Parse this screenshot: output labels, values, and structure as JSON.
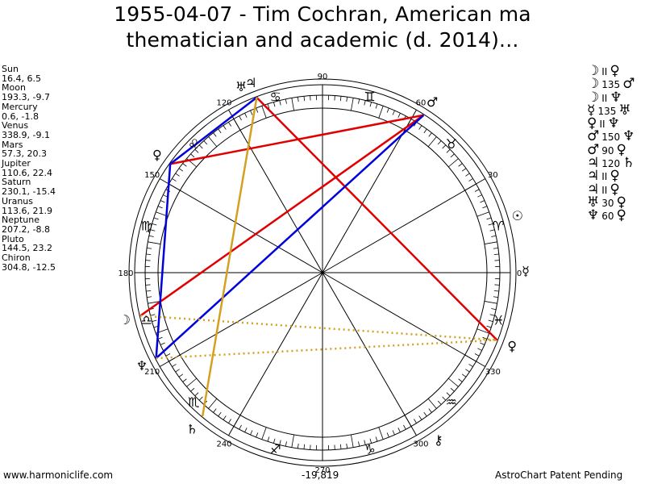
{
  "title": {
    "line1": "1955-04-07 - Tim Cochran, American ma",
    "line2": "thematician and academic (d. 2014)..."
  },
  "planets": [
    {
      "name": "Sun",
      "coords": "16.4, 6.5"
    },
    {
      "name": "Moon",
      "coords": "193.3, -9.7"
    },
    {
      "name": "Mercury",
      "coords": "0.6, -1.8"
    },
    {
      "name": "Venus",
      "coords": "338.9, -9.1"
    },
    {
      "name": "Mars",
      "coords": "57.3, 20.3"
    },
    {
      "name": "Jupiter",
      "coords": "110.6, 22.4"
    },
    {
      "name": "Saturn",
      "coords": "230.1, -15.4"
    },
    {
      "name": "Uranus",
      "coords": "113.6, 21.9"
    },
    {
      "name": "Neptune",
      "coords": "207.2, -8.8"
    },
    {
      "name": "Pluto",
      "coords": "144.5, 23.2"
    },
    {
      "name": "Chiron",
      "coords": "304.8, -12.5"
    }
  ],
  "aspects": [
    {
      "p1": "☽",
      "asp": "II",
      "p2": "♀"
    },
    {
      "p1": "☽",
      "asp": "135",
      "p2": "♂"
    },
    {
      "p1": "☽",
      "asp": "II",
      "p2": "♆"
    },
    {
      "p1": "☿",
      "asp": "135",
      "p2": "♅"
    },
    {
      "p1": "♀",
      "asp": "II",
      "p2": "♆"
    },
    {
      "p1": "♂",
      "asp": "150",
      "p2": "♆"
    },
    {
      "p1": "♂",
      "asp": "90",
      "p2": "♀"
    },
    {
      "p1": "♃",
      "asp": "120",
      "p2": "♄"
    },
    {
      "p1": "♃",
      "asp": "II",
      "p2": "♀"
    },
    {
      "p1": "♃",
      "asp": "II",
      "p2": "♀"
    },
    {
      "p1": "♅",
      "asp": "30",
      "p2": "♀"
    },
    {
      "p1": "♆",
      "asp": "60",
      "p2": "♀"
    }
  ],
  "degree_labels": [
    "0",
    "30",
    "60",
    "90",
    "120",
    "150",
    "180",
    "210",
    "240",
    "270",
    "300",
    "330"
  ],
  "zodiac_glyphs": [
    "♈",
    "♉",
    "♊",
    "♋",
    "♌",
    "♍",
    "♎",
    "♏",
    "♐",
    "♑",
    "♒",
    "♓"
  ],
  "chart_planet_glyphs": {
    "sun": "☉",
    "moon": "☽",
    "mercury": "☿",
    "venus": "♀",
    "mars": "♂",
    "jupiter": "♃",
    "saturn": "♄",
    "uranus": "♅",
    "neptune": "♆",
    "pluto": "♀",
    "chiron": "⚷",
    "node": "☊"
  },
  "footer": {
    "site": "www.harmoniclife.com",
    "center_value": "-19,819",
    "patent": "AstroChart Patent Pending"
  },
  "colors": {
    "red": "#e00000",
    "blue": "#0000dd",
    "orange": "#d4a020"
  }
}
